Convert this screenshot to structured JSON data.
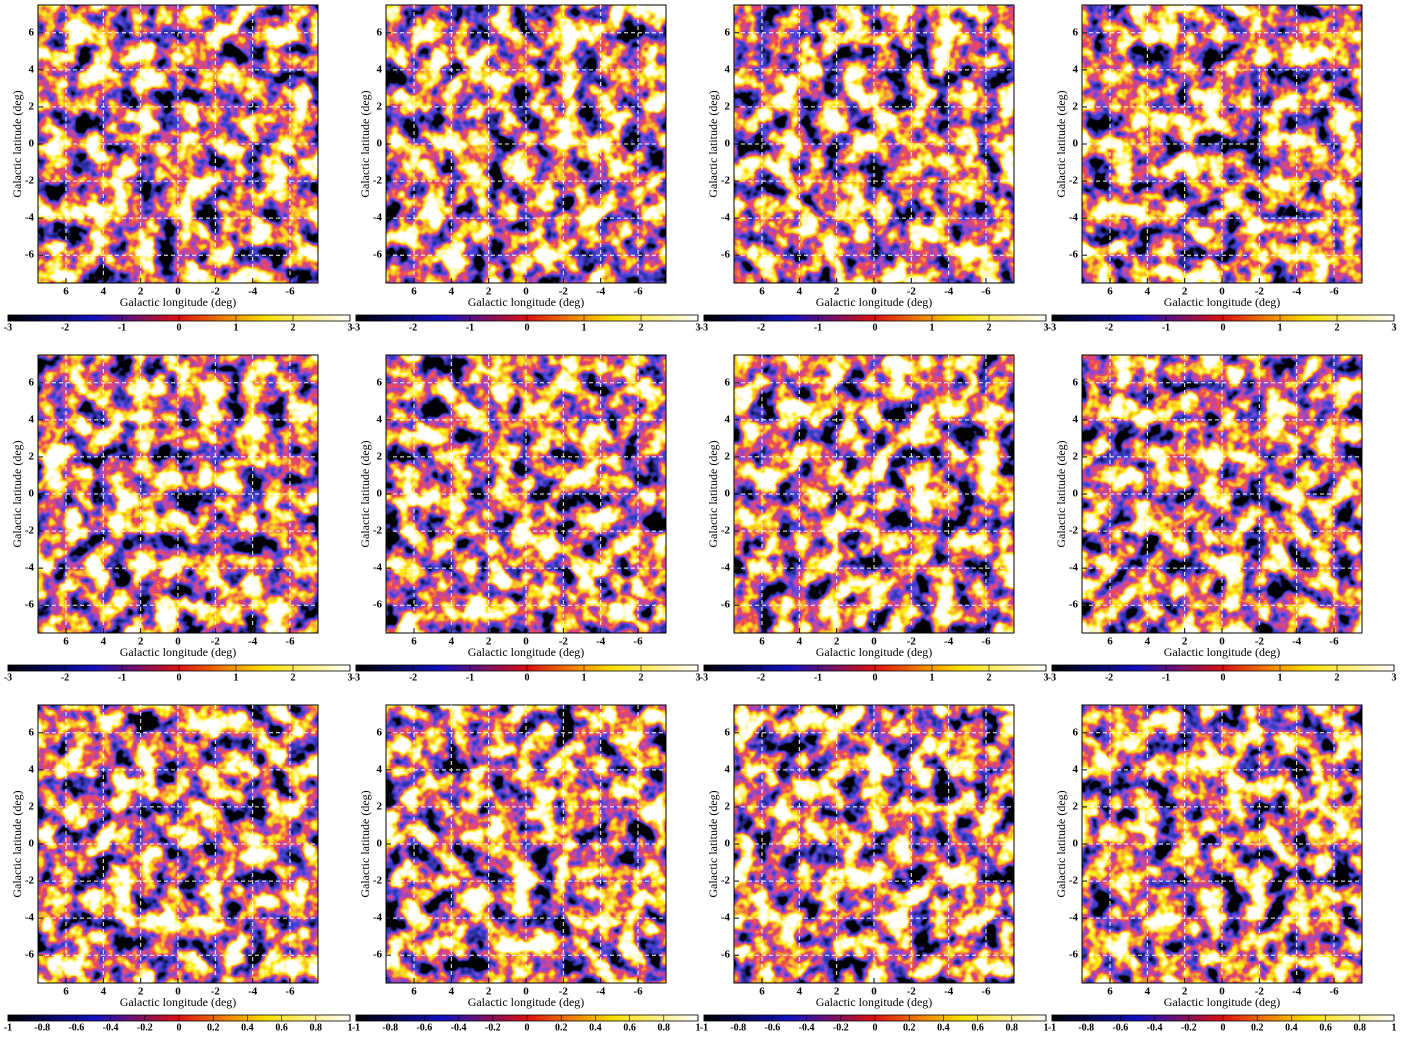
{
  "chart_data": [
    {
      "type": "heatmap",
      "xlabel": "Galactic longitude (deg)",
      "ylabel": "Galactic latitude (deg)",
      "xlim": [
        7.5,
        -7.5
      ],
      "ylim": [
        -7.5,
        7.5
      ],
      "xticks": [
        6,
        4,
        2,
        0,
        -2,
        -4,
        -6
      ],
      "yticks": [
        -6,
        -4,
        -2,
        0,
        2,
        4,
        6
      ],
      "grid": true,
      "colormap": [
        "#000000",
        "#1010c0",
        "#dd1010",
        "#ffe000",
        "#ffffff"
      ],
      "colorbar": {
        "lim": [
          -3,
          3
        ],
        "ticks": [
          -3,
          -2,
          -1,
          0,
          1,
          2,
          3
        ]
      }
    },
    {
      "type": "heatmap",
      "xlabel": "Galactic longitude (deg)",
      "ylabel": "Galactic latitude (deg)",
      "xlim": [
        7.5,
        -7.5
      ],
      "ylim": [
        -7.5,
        7.5
      ],
      "xticks": [
        6,
        4,
        2,
        0,
        -2,
        -4,
        -6
      ],
      "yticks": [
        -6,
        -4,
        -2,
        0,
        2,
        4,
        6
      ],
      "grid": true,
      "colormap": [
        "#000000",
        "#1010c0",
        "#dd1010",
        "#ffe000",
        "#ffffff"
      ],
      "colorbar": {
        "lim": [
          -3,
          3
        ],
        "ticks": [
          -3,
          -2,
          -1,
          0,
          1,
          2,
          3
        ]
      }
    },
    {
      "type": "heatmap",
      "xlabel": "Galactic longitude (deg)",
      "ylabel": "Galactic latitude (deg)",
      "xlim": [
        7.5,
        -7.5
      ],
      "ylim": [
        -7.5,
        7.5
      ],
      "xticks": [
        6,
        4,
        2,
        0,
        -2,
        -4,
        -6
      ],
      "yticks": [
        -6,
        -4,
        -2,
        0,
        2,
        4,
        6
      ],
      "grid": true,
      "colormap": [
        "#000000",
        "#1010c0",
        "#dd1010",
        "#ffe000",
        "#ffffff"
      ],
      "colorbar": {
        "lim": [
          -3,
          3
        ],
        "ticks": [
          -3,
          -2,
          -1,
          0,
          1,
          2,
          3
        ]
      }
    },
    {
      "type": "heatmap",
      "xlabel": "Galactic longitude (deg)",
      "ylabel": "Galactic latitude (deg)",
      "xlim": [
        7.5,
        -7.5
      ],
      "ylim": [
        -7.5,
        7.5
      ],
      "xticks": [
        6,
        4,
        2,
        0,
        -2,
        -4,
        -6
      ],
      "yticks": [
        -6,
        -4,
        -2,
        0,
        2,
        4,
        6
      ],
      "grid": true,
      "colormap": [
        "#000000",
        "#1010c0",
        "#dd1010",
        "#ffe000",
        "#ffffff"
      ],
      "colorbar": {
        "lim": [
          -3,
          3
        ],
        "ticks": [
          -3,
          -2,
          -1,
          0,
          1,
          2,
          3
        ]
      }
    },
    {
      "type": "heatmap",
      "xlabel": "Galactic longitude (deg)",
      "ylabel": "Galactic latitude (deg)",
      "xlim": [
        7.5,
        -7.5
      ],
      "ylim": [
        -7.5,
        7.5
      ],
      "xticks": [
        6,
        4,
        2,
        0,
        -2,
        -4,
        -6
      ],
      "yticks": [
        -6,
        -4,
        -2,
        0,
        2,
        4,
        6
      ],
      "grid": true,
      "colormap": [
        "#000000",
        "#1010c0",
        "#dd1010",
        "#ffe000",
        "#ffffff"
      ],
      "colorbar": {
        "lim": [
          -3,
          3
        ],
        "ticks": [
          -3,
          -2,
          -1,
          0,
          1,
          2,
          3
        ]
      }
    },
    {
      "type": "heatmap",
      "xlabel": "Galactic longitude (deg)",
      "ylabel": "Galactic latitude (deg)",
      "xlim": [
        7.5,
        -7.5
      ],
      "ylim": [
        -7.5,
        7.5
      ],
      "xticks": [
        6,
        4,
        2,
        0,
        -2,
        -4,
        -6
      ],
      "yticks": [
        -6,
        -4,
        -2,
        0,
        2,
        4,
        6
      ],
      "grid": true,
      "colormap": [
        "#000000",
        "#1010c0",
        "#dd1010",
        "#ffe000",
        "#ffffff"
      ],
      "colorbar": {
        "lim": [
          -3,
          3
        ],
        "ticks": [
          -3,
          -2,
          -1,
          0,
          1,
          2,
          3
        ]
      }
    },
    {
      "type": "heatmap",
      "xlabel": "Galactic longitude (deg)",
      "ylabel": "Galactic latitude (deg)",
      "xlim": [
        7.5,
        -7.5
      ],
      "ylim": [
        -7.5,
        7.5
      ],
      "xticks": [
        6,
        4,
        2,
        0,
        -2,
        -4,
        -6
      ],
      "yticks": [
        -6,
        -4,
        -2,
        0,
        2,
        4,
        6
      ],
      "grid": true,
      "colormap": [
        "#000000",
        "#1010c0",
        "#dd1010",
        "#ffe000",
        "#ffffff"
      ],
      "colorbar": {
        "lim": [
          -3,
          3
        ],
        "ticks": [
          -3,
          -2,
          -1,
          0,
          1,
          2,
          3
        ]
      }
    },
    {
      "type": "heatmap",
      "xlabel": "Galactic longitude (deg)",
      "ylabel": "Galactic latitude (deg)",
      "xlim": [
        7.5,
        -7.5
      ],
      "ylim": [
        -7.5,
        7.5
      ],
      "xticks": [
        6,
        4,
        2,
        0,
        -2,
        -4,
        -6
      ],
      "yticks": [
        -6,
        -4,
        -2,
        0,
        2,
        4,
        6
      ],
      "grid": true,
      "colormap": [
        "#000000",
        "#1010c0",
        "#dd1010",
        "#ffe000",
        "#ffffff"
      ],
      "colorbar": {
        "lim": [
          -3,
          3
        ],
        "ticks": [
          -3,
          -2,
          -1,
          0,
          1,
          2,
          3
        ]
      }
    },
    {
      "type": "heatmap",
      "xlabel": "Galactic longitude (deg)",
      "ylabel": "Galactic latitude (deg)",
      "xlim": [
        7.5,
        -7.5
      ],
      "ylim": [
        -7.5,
        7.5
      ],
      "xticks": [
        6,
        4,
        2,
        0,
        -2,
        -4,
        -6
      ],
      "yticks": [
        -6,
        -4,
        -2,
        0,
        2,
        4,
        6
      ],
      "grid": true,
      "colormap": [
        "#000000",
        "#1010c0",
        "#dd1010",
        "#ffe000",
        "#ffffff"
      ],
      "colorbar": {
        "lim": [
          -1,
          1
        ],
        "ticks": [
          -1,
          -0.8,
          -0.6,
          -0.4,
          -0.2,
          0,
          0.2,
          0.4,
          0.6,
          0.8,
          1
        ]
      }
    },
    {
      "type": "heatmap",
      "xlabel": "Galactic longitude (deg)",
      "ylabel": "Galactic latitude (deg)",
      "xlim": [
        7.5,
        -7.5
      ],
      "ylim": [
        -7.5,
        7.5
      ],
      "xticks": [
        6,
        4,
        2,
        0,
        -2,
        -4,
        -6
      ],
      "yticks": [
        -6,
        -4,
        -2,
        0,
        2,
        4,
        6
      ],
      "grid": true,
      "colormap": [
        "#000000",
        "#1010c0",
        "#dd1010",
        "#ffe000",
        "#ffffff"
      ],
      "colorbar": {
        "lim": [
          -1,
          1
        ],
        "ticks": [
          -1,
          -0.8,
          -0.6,
          -0.4,
          -0.2,
          0,
          0.2,
          0.4,
          0.6,
          0.8,
          1
        ]
      }
    },
    {
      "type": "heatmap",
      "xlabel": "Galactic longitude (deg)",
      "ylabel": "Galactic latitude (deg)",
      "xlim": [
        7.5,
        -7.5
      ],
      "ylim": [
        -7.5,
        7.5
      ],
      "xticks": [
        6,
        4,
        2,
        0,
        -2,
        -4,
        -6
      ],
      "yticks": [
        -6,
        -4,
        -2,
        0,
        2,
        4,
        6
      ],
      "grid": true,
      "colormap": [
        "#000000",
        "#1010c0",
        "#dd1010",
        "#ffe000",
        "#ffffff"
      ],
      "colorbar": {
        "lim": [
          -1,
          1
        ],
        "ticks": [
          -1,
          -0.8,
          -0.6,
          -0.4,
          -0.2,
          0,
          0.2,
          0.4,
          0.6,
          0.8,
          1
        ]
      }
    },
    {
      "type": "heatmap",
      "xlabel": "Galactic longitude (deg)",
      "ylabel": "Galactic latitude (deg)",
      "xlim": [
        7.5,
        -7.5
      ],
      "ylim": [
        -7.5,
        7.5
      ],
      "xticks": [
        6,
        4,
        2,
        0,
        -2,
        -4,
        -6
      ],
      "yticks": [
        -6,
        -4,
        -2,
        0,
        2,
        4,
        6
      ],
      "grid": true,
      "colormap": [
        "#000000",
        "#1010c0",
        "#dd1010",
        "#ffe000",
        "#ffffff"
      ],
      "colorbar": {
        "lim": [
          -1,
          1
        ],
        "ticks": [
          -1,
          -0.8,
          -0.6,
          -0.4,
          -0.2,
          0,
          0.2,
          0.4,
          0.6,
          0.8,
          1
        ]
      }
    }
  ]
}
